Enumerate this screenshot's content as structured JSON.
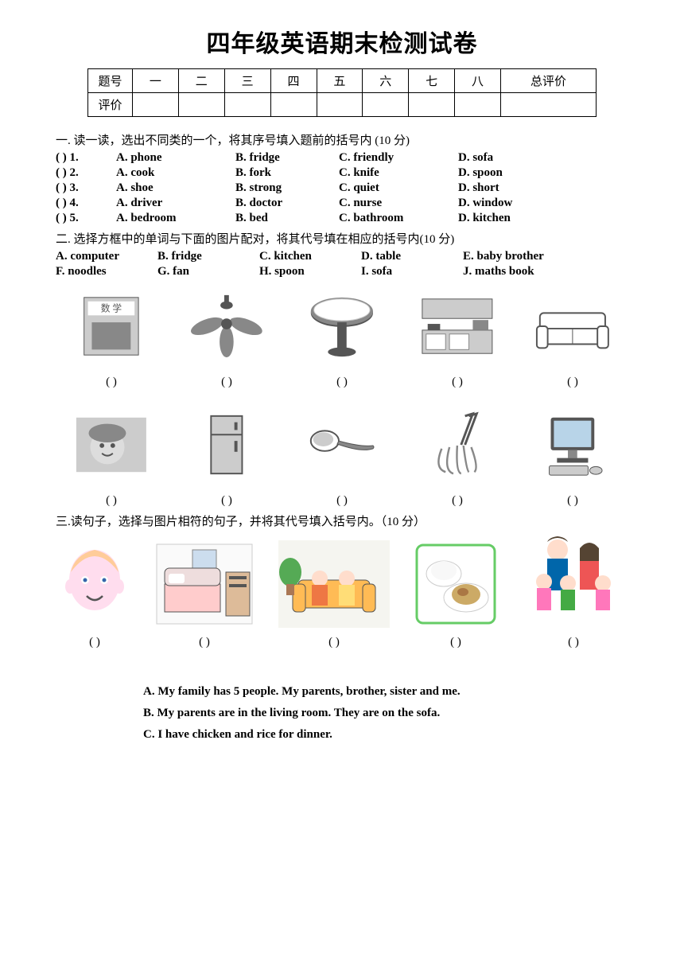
{
  "title": "四年级英语期末检测试卷",
  "score_table": {
    "header_label": "题号",
    "row_label": "评价",
    "columns": [
      "一",
      "二",
      "三",
      "四",
      "五",
      "六",
      "七",
      "八",
      "总评价"
    ]
  },
  "section1": {
    "heading": "一. 读一读，选出不同类的一个，将其序号填入题前的括号内  (10 分)",
    "rows": [
      {
        "n": "1",
        "a": "A. phone",
        "b": "B. fridge",
        "c": "C. friendly",
        "d": "D. sofa"
      },
      {
        "n": "2",
        "a": "A. cook",
        "b": "B. fork",
        "c": "C. knife",
        "d": "D. spoon"
      },
      {
        "n": "3",
        "a": "A. shoe",
        "b": "B. strong",
        "c": "C. quiet",
        "d": "D. short"
      },
      {
        "n": "4",
        "a": "A. driver",
        "b": "B. doctor",
        "c": "C. nurse",
        "d": "D. window"
      },
      {
        "n": "5",
        "a": "A. bedroom",
        "b": "B. bed",
        "c": "C. bathroom",
        "d": "D. kitchen"
      }
    ]
  },
  "section2": {
    "heading": "二. 选择方框中的单词与下面的图片配对，将其代号填在相应的括号内(10 分)",
    "options_row1": [
      "A. computer",
      "B. fridge",
      "C. kitchen",
      "D. table",
      "E. baby brother"
    ],
    "options_row2": [
      "F. noodles",
      "G. fan",
      "H. spoon",
      "I. sofa",
      "J. maths book"
    ],
    "images_row1": [
      "maths-book",
      "fan",
      "table",
      "kitchen",
      "sofa"
    ],
    "images_row2": [
      "baby",
      "fridge",
      "spoon",
      "noodles",
      "computer"
    ],
    "paren": "(          )"
  },
  "section3": {
    "heading": "三.读句子，选择与图片相符的句子，并将其代号填入括号内。（10 分）",
    "images": [
      "boy",
      "bedroom",
      "livingroom",
      "food",
      "family"
    ],
    "paren": "(        )",
    "sentences": [
      "A. My family has 5 people. My parents, brother, sister and me.",
      "B. My parents are in the living room. They are on the sofa.",
      "C. I have chicken and rice for dinner."
    ]
  }
}
